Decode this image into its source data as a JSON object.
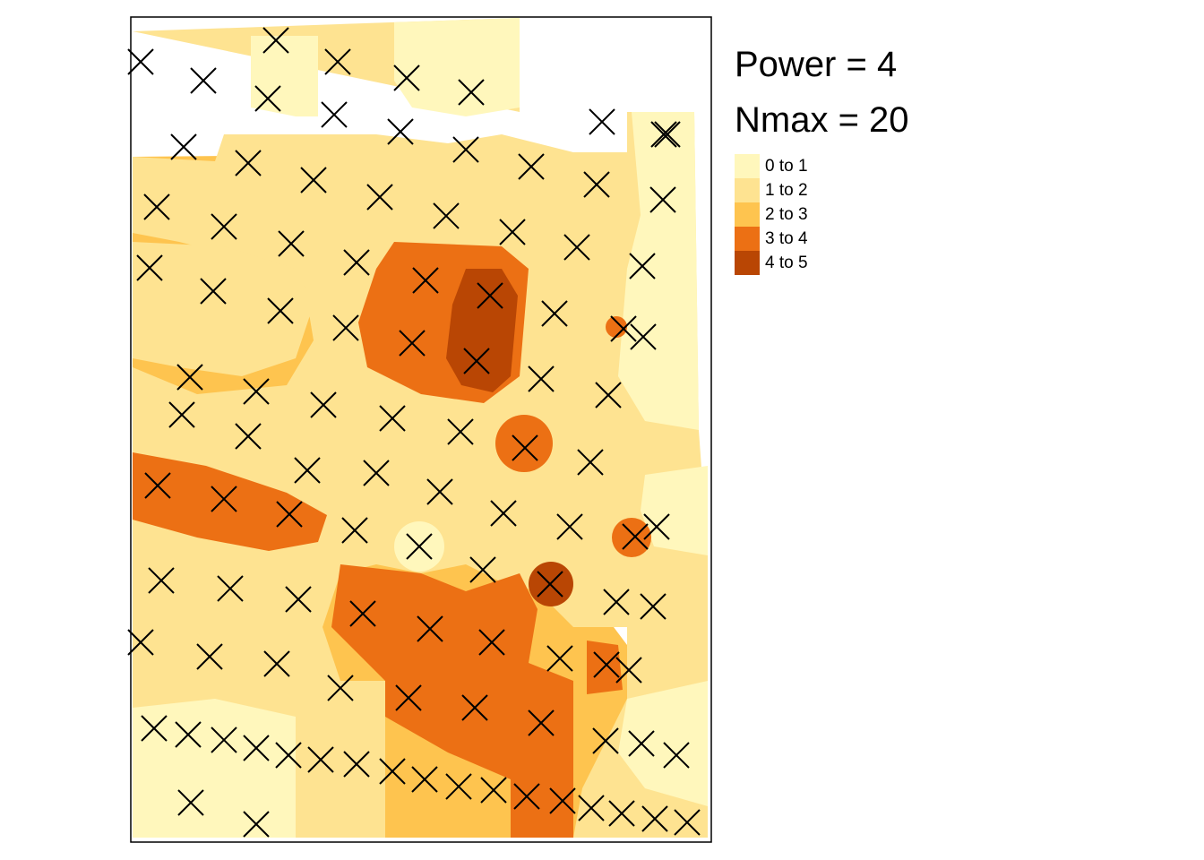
{
  "legend": {
    "title_power": "Power = 4",
    "title_nmax": "Nmax = 20",
    "classes": [
      {
        "label": "0 to 1",
        "color": "#FFF7BC"
      },
      {
        "label": "1 to 2",
        "color": "#FEE391"
      },
      {
        "label": "2 to 3",
        "color": "#FEC44F"
      },
      {
        "label": "3 to 4",
        "color": "#EC7014"
      },
      {
        "label": "4 to 5",
        "color": "#B94604"
      }
    ]
  },
  "map": {
    "style": "inverse-distance-weighted interpolation raster with sample point markers",
    "marker_icon": "x-cross-icon",
    "sample_point_count": 121
  }
}
